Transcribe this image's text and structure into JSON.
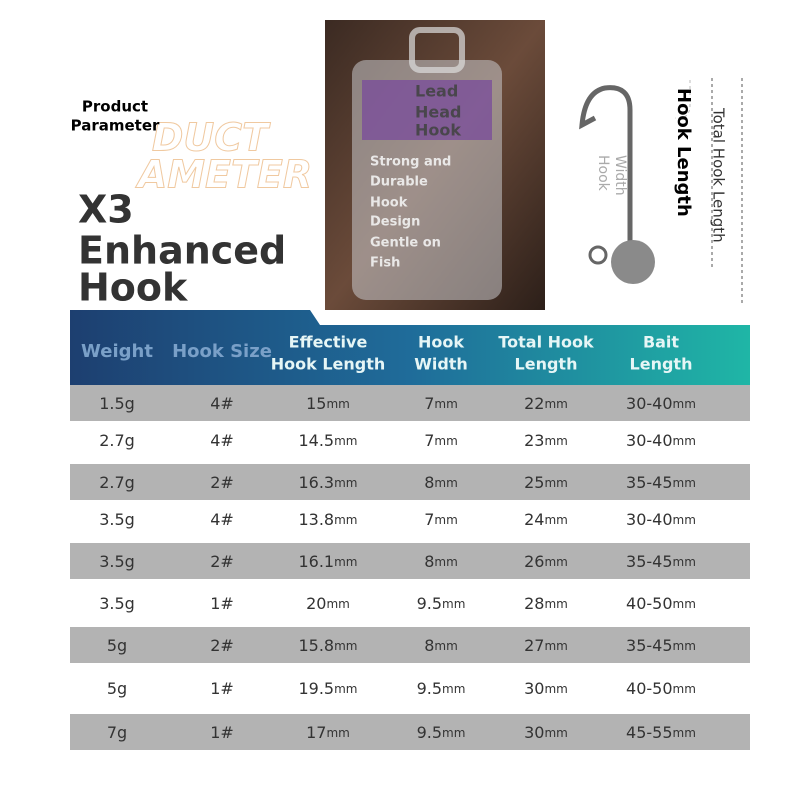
{
  "header": {
    "label": "Product Parameter",
    "deco": [
      "DUCT",
      "AMETER"
    ],
    "title": [
      "X3",
      "Enhanced",
      "Hook"
    ]
  },
  "photo": {
    "lines": [
      "Lead",
      "Head",
      "Hook",
      "Strong and",
      "Durable",
      "Hook",
      "Design",
      "Gentle on",
      "Fish"
    ]
  },
  "diagram": {
    "hook_length": "Hook Length",
    "hook_width": [
      "Hook",
      "Width"
    ],
    "total_length": "Total Hook Length"
  },
  "table": {
    "columns": [
      [
        "Weight"
      ],
      [
        "Hook Size"
      ],
      [
        "Effective",
        "Hook Length"
      ],
      [
        "Hook",
        "Width"
      ],
      [
        "Total Hook",
        "Length"
      ],
      [
        "Bait",
        "Length"
      ]
    ],
    "rows": [
      [
        {
          "n": "1.5g"
        },
        {
          "n": "4#"
        },
        {
          "n": "15",
          "u": "mm"
        },
        {
          "n": "7",
          "u": "mm"
        },
        {
          "n": "22",
          "u": "mm"
        },
        {
          "n": "30-40",
          "u": "mm"
        }
      ],
      [
        {
          "n": "2.7g"
        },
        {
          "n": "4#"
        },
        {
          "n": "14.5",
          "u": "mm"
        },
        {
          "n": "7",
          "u": "mm"
        },
        {
          "n": "23",
          "u": "mm"
        },
        {
          "n": "30-40",
          "u": "mm"
        }
      ],
      [
        {
          "n": "2.7g"
        },
        {
          "n": "2#"
        },
        {
          "n": "16.3",
          "u": "mm"
        },
        {
          "n": "8",
          "u": "mm"
        },
        {
          "n": "25",
          "u": "mm"
        },
        {
          "n": "35-45",
          "u": "mm"
        }
      ],
      [
        {
          "n": "3.5g"
        },
        {
          "n": "4#"
        },
        {
          "n": "13.8",
          "u": "mm"
        },
        {
          "n": "7",
          "u": "mm"
        },
        {
          "n": "24",
          "u": "mm"
        },
        {
          "n": "30-40",
          "u": "mm"
        }
      ],
      [
        {
          "n": "3.5g"
        },
        {
          "n": "2#"
        },
        {
          "n": "16.1",
          "u": "mm"
        },
        {
          "n": "8",
          "u": "mm"
        },
        {
          "n": "26",
          "u": "mm"
        },
        {
          "n": "35-45",
          "u": "mm"
        }
      ],
      [
        {
          "n": "3.5g"
        },
        {
          "n": "1#"
        },
        {
          "n": "20",
          "u": "mm"
        },
        {
          "n": "9.5",
          "u": "mm"
        },
        {
          "n": "28",
          "u": "mm"
        },
        {
          "n": "40-50",
          "u": "mm"
        }
      ],
      [
        {
          "n": "5g"
        },
        {
          "n": "2#"
        },
        {
          "n": "15.8",
          "u": "mm"
        },
        {
          "n": "8",
          "u": "mm"
        },
        {
          "n": "27",
          "u": "mm"
        },
        {
          "n": "35-45",
          "u": "mm"
        }
      ],
      [
        {
          "n": "5g"
        },
        {
          "n": "1#"
        },
        {
          "n": "19.5",
          "u": "mm"
        },
        {
          "n": "9.5",
          "u": "mm"
        },
        {
          "n": "30",
          "u": "mm"
        },
        {
          "n": "40-50",
          "u": "mm"
        }
      ],
      [
        {
          "n": "7g"
        },
        {
          "n": "1#"
        },
        {
          "n": "17",
          "u": "mm"
        },
        {
          "n": "9.5",
          "u": "mm"
        },
        {
          "n": "30",
          "u": "mm"
        },
        {
          "n": "45-55",
          "u": "mm"
        }
      ]
    ]
  }
}
